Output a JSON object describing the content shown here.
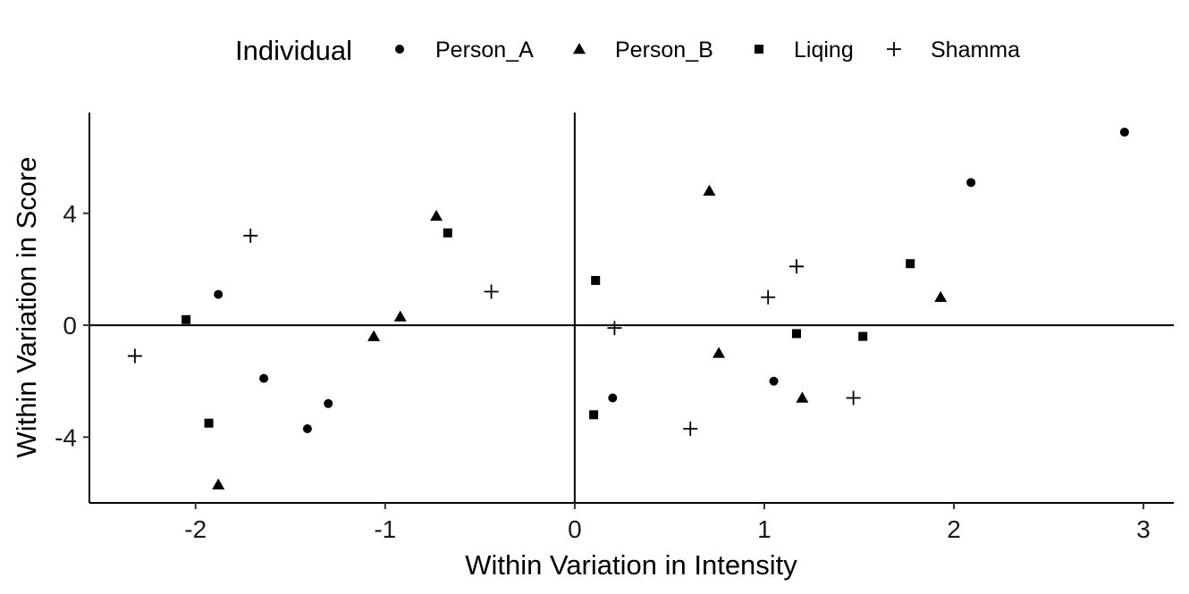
{
  "chart_data": {
    "type": "scatter",
    "title": "",
    "xlabel": "Within Variation in Intensity",
    "ylabel": "Within Variation in Score",
    "xlim": [
      -2.56,
      3.16
    ],
    "ylim": [
      -6.35,
      7.6
    ],
    "x_ticks": [
      -2,
      -1,
      0,
      1,
      2,
      3
    ],
    "y_ticks": [
      -4,
      0,
      4
    ],
    "x_tick_labels": [
      "-2",
      "-1",
      "0",
      "1",
      "2",
      "3"
    ],
    "y_tick_labels": [
      "-4",
      "0",
      "4"
    ],
    "reference_lines": {
      "x": 0,
      "y": 0
    },
    "grid": false,
    "legend": {
      "title": "Individual",
      "position": "top"
    },
    "series": [
      {
        "name": "Person_A",
        "marker": "circle",
        "x": [
          -1.88,
          -1.64,
          -1.41,
          -1.3,
          0.2,
          1.05,
          2.09,
          2.9
        ],
        "y": [
          1.1,
          -1.9,
          -3.7,
          -2.8,
          -2.6,
          -2.0,
          5.1,
          6.9
        ]
      },
      {
        "name": "Person_B",
        "marker": "triangle",
        "x": [
          -1.88,
          -1.06,
          -0.92,
          -0.73,
          0.71,
          0.76,
          1.2,
          1.93
        ],
        "y": [
          -5.7,
          -0.4,
          0.3,
          3.9,
          4.8,
          -1.0,
          -2.6,
          1.0
        ]
      },
      {
        "name": "Liqing",
        "marker": "square",
        "x": [
          -2.05,
          -1.93,
          -0.67,
          0.1,
          0.11,
          1.17,
          1.52,
          1.77
        ],
        "y": [
          0.2,
          -3.5,
          3.3,
          -3.2,
          1.6,
          -0.3,
          -0.4,
          2.2
        ]
      },
      {
        "name": "Shamma",
        "marker": "plus",
        "x": [
          -2.32,
          -1.71,
          -0.44,
          0.21,
          0.61,
          1.02,
          1.17,
          1.47
        ],
        "y": [
          -1.1,
          3.2,
          1.2,
          -0.1,
          -3.7,
          1.0,
          2.1,
          -2.6
        ]
      }
    ]
  }
}
